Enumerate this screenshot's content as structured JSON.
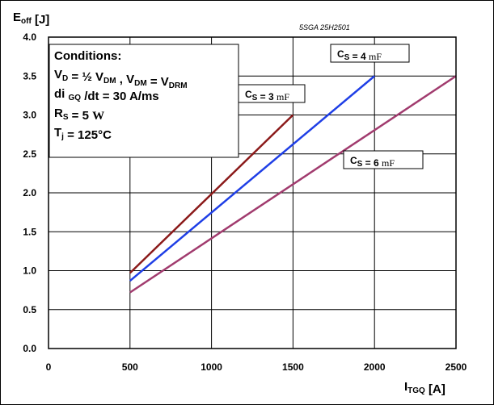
{
  "chart_data": {
    "type": "line",
    "part_number": "5SGA 25H2501",
    "ylabel": {
      "main": "E",
      "sub": "off",
      "unit": " [J]"
    },
    "xlabel": {
      "main": "I",
      "sub": "TGQ",
      "unit": " [A]"
    },
    "xlim": [
      0,
      2500
    ],
    "ylim": [
      0,
      4
    ],
    "xticks": [
      0,
      500,
      1000,
      1500,
      2000,
      2500
    ],
    "yticks": [
      0,
      0.5,
      1,
      1.5,
      2,
      2.5,
      3,
      3.5,
      4
    ],
    "xtick_labels": [
      "0",
      "500",
      "1000",
      "1500",
      "2000",
      "2500"
    ],
    "ytick_labels": [
      "0.0",
      "0.5",
      "1.0",
      "1.5",
      "2.0",
      "2.5",
      "3.0",
      "3.5",
      "4.0"
    ],
    "grid": true,
    "conditions": {
      "title": "Conditions:",
      "lines": [
        [
          {
            "t": "V"
          },
          {
            "t": "D",
            "sub": true
          },
          {
            "t": " = ½ V"
          },
          {
            "t": "DM",
            "sub": true
          },
          {
            "t": " , V"
          },
          {
            "t": "DM",
            "sub": true
          },
          {
            "t": " = V"
          },
          {
            "t": "DRM",
            "sub": true
          }
        ],
        [
          {
            "t": "di "
          },
          {
            "t": "GQ",
            "sub": true
          },
          {
            "t": " /dt = 30 A/ms"
          }
        ],
        [
          {
            "t": "R"
          },
          {
            "t": "S",
            "sub": true
          },
          {
            "t": " = 5 "
          },
          {
            "t": "W",
            "serif": true
          }
        ],
        [
          {
            "t": "T"
          },
          {
            "t": "j",
            "sub": true
          },
          {
            "t": " = 125°C"
          }
        ]
      ]
    },
    "series": [
      {
        "main": "C",
        "sub": "S",
        "value": " = 3 ",
        "unit": "mF",
        "color": "#8b1a1a",
        "x": [
          500,
          1500
        ],
        "y": [
          0.97,
          3.0
        ]
      },
      {
        "main": "C",
        "sub": "S",
        "value": " = 4 ",
        "unit": "mF",
        "color": "#1f3fe6",
        "x": [
          500,
          2000
        ],
        "y": [
          0.87,
          3.5
        ]
      },
      {
        "main": "C",
        "sub": "S",
        "value": " = 6 ",
        "unit": "mF",
        "color": "#a13b6e",
        "x": [
          500,
          2500
        ],
        "y": [
          0.72,
          3.5
        ]
      }
    ]
  }
}
